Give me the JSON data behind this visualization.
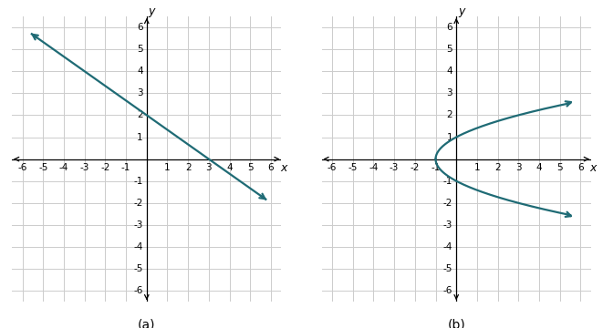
{
  "graph_a": {
    "xlim": [
      -6,
      6
    ],
    "ylim": [
      -6,
      6
    ],
    "xticks": [
      -6,
      -5,
      -4,
      -3,
      -2,
      -1,
      1,
      2,
      3,
      4,
      5,
      6
    ],
    "yticks": [
      -6,
      -5,
      -4,
      -3,
      -2,
      -1,
      1,
      2,
      3,
      4,
      5,
      6
    ],
    "line_color": "#1F6B75",
    "line_width": 1.6,
    "slope": -0.6667,
    "intercept": 2,
    "x_start": -5.55,
    "x_end": 5.75,
    "label": "(a)"
  },
  "graph_b": {
    "xlim": [
      -6,
      6
    ],
    "ylim": [
      -6,
      6
    ],
    "xticks": [
      -6,
      -5,
      -4,
      -3,
      -2,
      -1,
      1,
      2,
      3,
      4,
      5,
      6
    ],
    "yticks": [
      -6,
      -5,
      -4,
      -3,
      -2,
      -1,
      1,
      2,
      3,
      4,
      5,
      6
    ],
    "line_color": "#1F6B75",
    "line_width": 1.6,
    "vertex_x": -1,
    "y_upper_end": 2.55,
    "y_lower_end": -2.55,
    "label": "(b)"
  },
  "grid_color": "#CCCCCC",
  "background_color": "#FFFFFF",
  "fig_width": 6.61,
  "fig_height": 3.6
}
